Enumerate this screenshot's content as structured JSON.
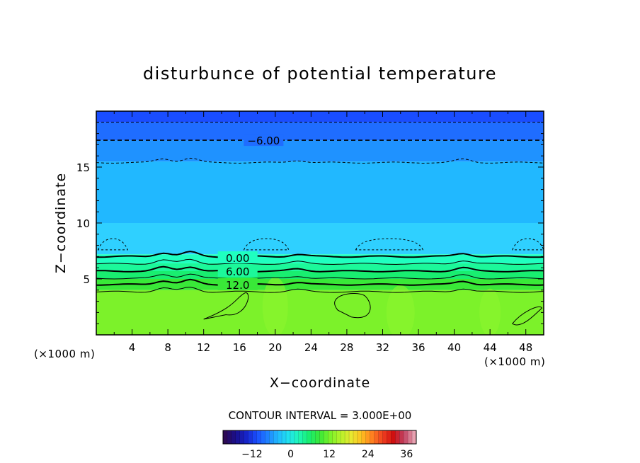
{
  "chart_data": {
    "type": "contour",
    "title": "disturbunce of potential temperature",
    "xlabel": "X−coordinate",
    "ylabel": "Z−coordinate",
    "x_unit_label": "(×1000 m)",
    "z_unit_label": "(×1000 m)",
    "xlim": [
      0,
      50
    ],
    "ylim": [
      0,
      20
    ],
    "x_ticks": [
      4,
      8,
      12,
      16,
      20,
      24,
      28,
      32,
      36,
      40,
      44,
      48
    ],
    "y_ticks": [
      5,
      10,
      15
    ],
    "contour_interval_text": "CONTOUR INTERVAL = 3.000E+00",
    "contour_labels": [
      {
        "text": "−6.00",
        "x": 18.7,
        "z": 17.4
      },
      {
        "text": "0.00",
        "x": 15.8,
        "z": 6.9
      },
      {
        "text": "6.00",
        "x": 15.8,
        "z": 5.7
      },
      {
        "text": "12.0",
        "x": 15.8,
        "z": 4.5
      }
    ],
    "field_bands": [
      {
        "z0": 19.0,
        "z1": 20.0,
        "value": -12,
        "color": "#1a4dff"
      },
      {
        "z0": 17.4,
        "z1": 19.0,
        "value": -9,
        "color": "#1f6dff"
      },
      {
        "z0": 15.5,
        "z1": 17.4,
        "value": -6,
        "color": "#1f92ff"
      },
      {
        "z0": 10.0,
        "z1": 15.5,
        "value": -3,
        "color": "#21b8ff"
      },
      {
        "z0": 7.2,
        "z1": 10.0,
        "value": -1,
        "color": "#2fd0ff"
      },
      {
        "z0": 6.4,
        "z1": 7.2,
        "value": 2,
        "color": "#1fffc0"
      },
      {
        "z0": 5.7,
        "z1": 6.4,
        "value": 5,
        "color": "#1cf89a"
      },
      {
        "z0": 5.0,
        "z1": 5.7,
        "value": 8,
        "color": "#19ee70"
      },
      {
        "z0": 4.0,
        "z1": 5.0,
        "value": 11,
        "color": "#39e838"
      },
      {
        "z0": 0.0,
        "z1": 4.0,
        "value": 14,
        "color": "#7cf22a"
      }
    ],
    "colorbar": {
      "ticks": [
        -12,
        0,
        12,
        24,
        36
      ],
      "tick_labels": [
        "−12",
        "0",
        "12",
        "24",
        "36"
      ],
      "range": [
        -21,
        39
      ],
      "colors": [
        "#2d0a55",
        "#1a0f8c",
        "#1624c8",
        "#1a4dff",
        "#1f80ff",
        "#21b8ff",
        "#20e0f0",
        "#1ff8b8",
        "#19ee70",
        "#39e838",
        "#7cf22a",
        "#b6f22a",
        "#e8e830",
        "#ffc020",
        "#ff8020",
        "#f04020",
        "#d01010",
        "#c04060",
        "#e8a0b0"
      ]
    }
  }
}
